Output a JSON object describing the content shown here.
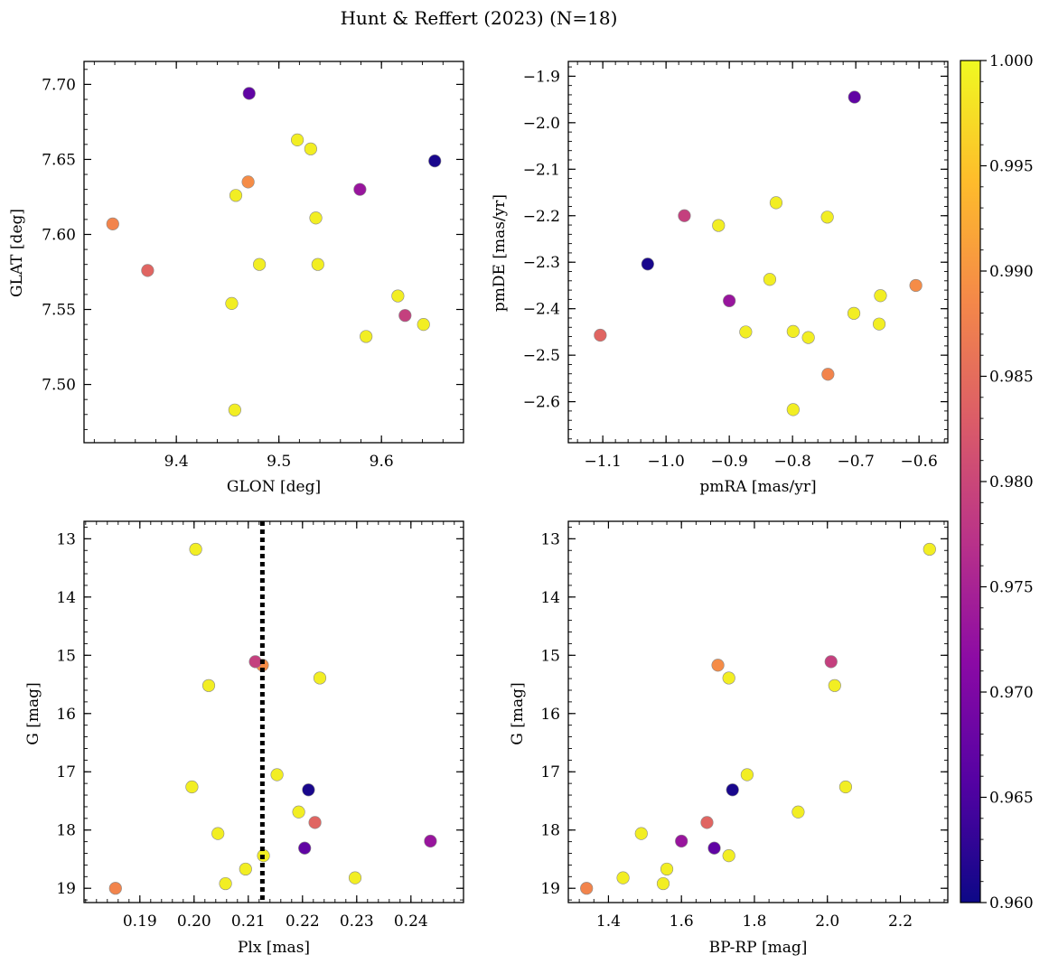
{
  "chart_data": {
    "title": "Hunt & Reffert (2023) (N=18)",
    "type": "scatter",
    "colormap": "plasma",
    "colorbar": {
      "range": [
        0.96,
        1.0
      ],
      "tick_values": [
        0.96,
        0.965,
        0.97,
        0.975,
        0.98,
        0.985,
        0.99,
        0.995,
        1.0
      ],
      "tick_labels": [
        "0.960",
        "0.965",
        "0.970",
        "0.975",
        "0.980",
        "0.985",
        "0.990",
        "0.995",
        "1.000"
      ]
    },
    "stars": [
      {
        "glon": 9.338,
        "glat": 7.607,
        "pmra": -0.744,
        "pmde": -2.541,
        "plx": 0.1855,
        "g": 19.0,
        "bprp": 1.34,
        "prob": 0.988
      },
      {
        "glon": 9.372,
        "glat": 7.576,
        "pmra": -1.104,
        "pmde": -2.457,
        "plx": 0.2223,
        "g": 17.87,
        "bprp": 1.67,
        "prob": 0.984
      },
      {
        "glon": 9.454,
        "glat": 7.554,
        "pmra": -0.917,
        "pmde": -2.221,
        "plx": 0.2027,
        "g": 15.52,
        "bprp": 2.02,
        "prob": 0.999
      },
      {
        "glon": 9.458,
        "glat": 7.626,
        "pmra": -0.826,
        "pmde": -2.172,
        "plx": 0.2232,
        "g": 15.39,
        "bprp": 1.73,
        "prob": 0.999
      },
      {
        "glon": 9.457,
        "glat": 7.483,
        "pmra": -0.799,
        "pmde": -2.617,
        "plx": 0.2003,
        "g": 13.18,
        "bprp": 2.28,
        "prob": 0.999
      },
      {
        "glon": 9.47,
        "glat": 7.635,
        "pmra": -0.605,
        "pmde": -2.35,
        "plx": 0.2126,
        "g": 15.17,
        "bprp": 1.7,
        "prob": 0.989
      },
      {
        "glon": 9.471,
        "glat": 7.694,
        "pmra": -0.702,
        "pmde": -1.945,
        "plx": 0.2204,
        "g": 18.31,
        "bprp": 1.69,
        "prob": 0.967
      },
      {
        "glon": 9.481,
        "glat": 7.58,
        "pmra": -0.745,
        "pmde": -2.203,
        "plx": 0.2128,
        "g": 18.44,
        "bprp": 1.73,
        "prob": 0.999
      },
      {
        "glon": 9.518,
        "glat": 7.663,
        "pmra": -0.874,
        "pmde": -2.45,
        "plx": 0.2095,
        "g": 18.67,
        "bprp": 1.56,
        "prob": 0.999
      },
      {
        "glon": 9.531,
        "glat": 7.657,
        "pmra": -0.703,
        "pmde": -2.41,
        "plx": 0.2058,
        "g": 18.92,
        "bprp": 1.55,
        "prob": 0.999
      },
      {
        "glon": 9.536,
        "glat": 7.611,
        "pmra": -0.663,
        "pmde": -2.433,
        "plx": 0.1996,
        "g": 17.26,
        "bprp": 2.05,
        "prob": 0.999
      },
      {
        "glon": 9.538,
        "glat": 7.58,
        "pmra": -0.775,
        "pmde": -2.462,
        "plx": 0.2153,
        "g": 17.05,
        "bprp": 1.78,
        "prob": 0.999
      },
      {
        "glon": 9.579,
        "glat": 7.63,
        "pmra": -0.9,
        "pmde": -2.383,
        "plx": 0.2436,
        "g": 18.19,
        "bprp": 1.6,
        "prob": 0.973
      },
      {
        "glon": 9.585,
        "glat": 7.532,
        "pmra": -0.661,
        "pmde": -2.372,
        "plx": 0.2044,
        "g": 18.06,
        "bprp": 1.49,
        "prob": 0.999
      },
      {
        "glon": 9.616,
        "glat": 7.559,
        "pmra": -0.836,
        "pmde": -2.337,
        "plx": 0.2193,
        "g": 17.69,
        "bprp": 1.92,
        "prob": 0.999
      },
      {
        "glon": 9.623,
        "glat": 7.546,
        "pmra": -0.971,
        "pmde": -2.2,
        "plx": 0.2113,
        "g": 15.11,
        "bprp": 2.01,
        "prob": 0.979
      },
      {
        "glon": 9.641,
        "glat": 7.54,
        "pmra": -0.799,
        "pmde": -2.449,
        "plx": 0.2297,
        "g": 18.82,
        "bprp": 1.44,
        "prob": 0.999
      },
      {
        "glon": 9.652,
        "glat": 7.649,
        "pmra": -1.029,
        "pmde": -2.304,
        "plx": 0.2211,
        "g": 17.31,
        "bprp": 1.74,
        "prob": 0.961
      }
    ],
    "panels": [
      {
        "id": "pos",
        "xkey": "glon",
        "ykey": "glat",
        "xlabel": "GLON [deg]",
        "ylabel": "GLAT [deg]",
        "xlim": [
          9.31,
          9.68
        ],
        "ylim": [
          7.4612,
          7.7153
        ],
        "invert_y": false,
        "xticks": [
          9.4,
          9.5,
          9.6
        ],
        "xticklabels": [
          "9.4",
          "9.5",
          "9.6"
        ],
        "yticks": [
          7.5,
          7.55,
          7.6,
          7.65,
          7.7
        ],
        "yticklabels": [
          "7.50",
          "7.55",
          "7.60",
          "7.65",
          "7.70"
        ],
        "xminor": 0.02,
        "yminor": 0.01
      },
      {
        "id": "pm",
        "xkey": "pmra",
        "ykey": "pmde",
        "xlabel": "pmRA [mas/yr]",
        "ylabel": "pmDE [mas/yr]",
        "xlim": [
          -1.1545,
          -0.5545
        ],
        "ylim": [
          -2.6882,
          -1.8682
        ],
        "invert_y": false,
        "xticks": [
          -1.1,
          -1.0,
          -0.9,
          -0.8,
          -0.7,
          -0.6
        ],
        "xticklabels": [
          "−1.1",
          "−1.0",
          "−0.9",
          "−0.8",
          "−0.7",
          "−0.6"
        ],
        "yticks": [
          -2.6,
          -2.5,
          -2.4,
          -2.3,
          -2.2,
          -2.1,
          -2.0,
          -1.9
        ],
        "yticklabels": [
          "−2.6",
          "−2.5",
          "−2.4",
          "−2.3",
          "−2.2",
          "−2.1",
          "−2.0",
          "−1.9"
        ],
        "xminor": 0.02,
        "yminor": 0.02
      },
      {
        "id": "plx",
        "xkey": "plx",
        "ykey": "g",
        "xlabel": "Plx [mas]",
        "ylabel": "G [mag]",
        "xlim": [
          0.1797,
          0.2497
        ],
        "ylim": [
          12.7,
          19.245
        ],
        "invert_y": true,
        "xticks": [
          0.19,
          0.2,
          0.21,
          0.22,
          0.23,
          0.24
        ],
        "xticklabels": [
          "0.19",
          "0.20",
          "0.21",
          "0.22",
          "0.23",
          "0.24"
        ],
        "yticks": [
          13,
          14,
          15,
          16,
          17,
          18,
          19
        ],
        "yticklabels": [
          "13",
          "14",
          "15",
          "16",
          "17",
          "18",
          "19"
        ],
        "xminor": 0.002,
        "yminor": 0.2,
        "vline": {
          "x": 0.2126,
          "style": "dotted"
        }
      },
      {
        "id": "cmd",
        "xkey": "bprp",
        "ykey": "g",
        "xlabel": "BP-RP [mag]",
        "ylabel": "G [mag]",
        "xlim": [
          1.29,
          2.33
        ],
        "ylim": [
          12.7,
          19.245
        ],
        "invert_y": true,
        "xticks": [
          1.4,
          1.6,
          1.8,
          2.0,
          2.2
        ],
        "xticklabels": [
          "1.4",
          "1.6",
          "1.8",
          "2.0",
          "2.2"
        ],
        "yticks": [
          13,
          14,
          15,
          16,
          17,
          18,
          19
        ],
        "yticklabels": [
          "13",
          "14",
          "15",
          "16",
          "17",
          "18",
          "19"
        ],
        "xminor": 0.04,
        "yminor": 0.2
      }
    ]
  }
}
